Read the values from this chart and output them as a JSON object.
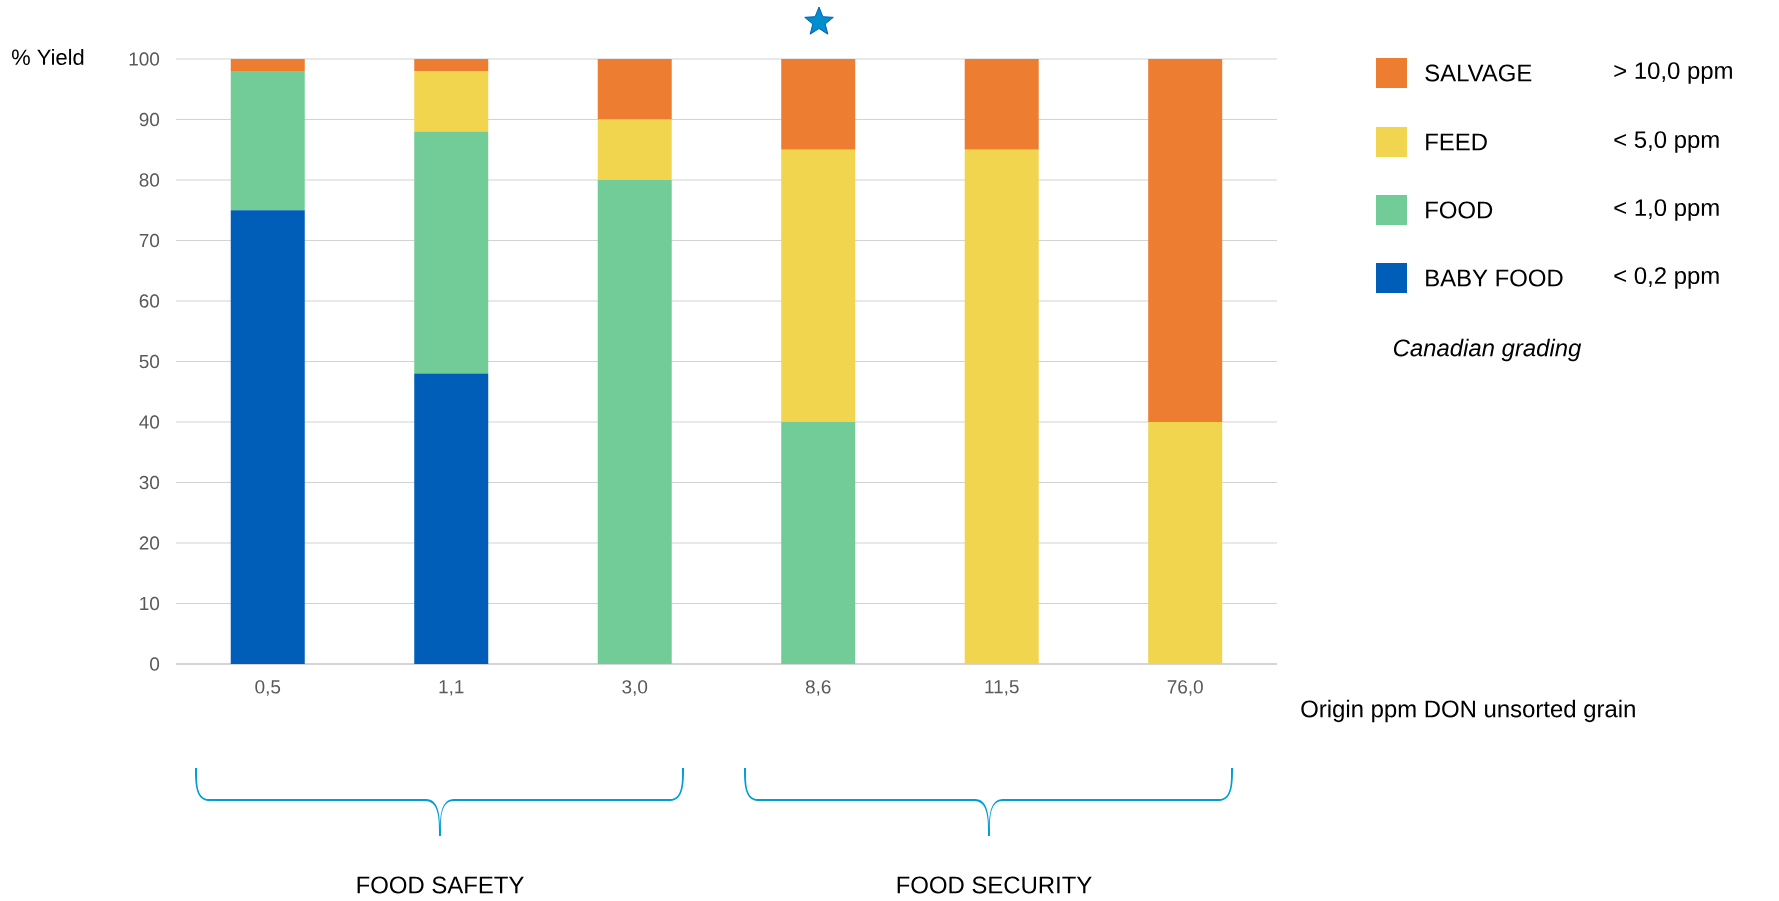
{
  "chart_data": {
    "type": "bar",
    "stacked": true,
    "ylabel": "% Yield",
    "xlabel": "Origin ppm DON unsorted grain",
    "categories": [
      "0,5",
      "1,1",
      "3,0",
      "8,6",
      "11,5",
      "76,0"
    ],
    "series": [
      {
        "name": "BABY FOOD",
        "color": "#005eb8",
        "values": [
          75,
          48,
          0,
          0,
          0,
          0
        ]
      },
      {
        "name": "FOOD",
        "color": "#72cc98",
        "values": [
          23,
          40,
          80,
          40,
          0,
          0
        ]
      },
      {
        "name": "FEED",
        "color": "#f2d54e",
        "values": [
          0,
          10,
          10,
          45,
          85,
          40
        ]
      },
      {
        "name": "SALVAGE",
        "color": "#ed7d31",
        "values": [
          2,
          2,
          10,
          15,
          15,
          60
        ]
      }
    ],
    "ylim": [
      0,
      100
    ],
    "yticks": [
      0,
      10,
      20,
      30,
      40,
      50,
      60,
      70,
      80,
      90,
      100
    ],
    "grid": "y",
    "legend": "right",
    "annotations": [
      "> 10,0 ppm",
      "< 5,0 ppm",
      "< 1,0 ppm",
      "< 0,2 ppm",
      "Canadian grading",
      "FOOD SAFETY",
      "FOOD SECURITY"
    ]
  }
}
